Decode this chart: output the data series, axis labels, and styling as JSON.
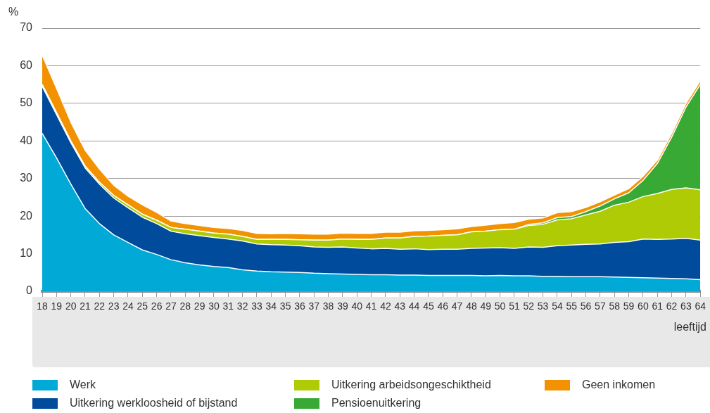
{
  "chart_data": {
    "type": "area",
    "stacked": true,
    "ylabel": "%",
    "xlabel": "leeftijd",
    "categories": [
      "18",
      "19",
      "20",
      "21",
      "22",
      "23",
      "24",
      "25",
      "26",
      "27",
      "28",
      "29",
      "30",
      "31",
      "32",
      "33",
      "34",
      "35",
      "36",
      "37",
      "38",
      "39",
      "40",
      "41",
      "42",
      "43",
      "44",
      "45",
      "46",
      "47",
      "48",
      "49",
      "50",
      "51",
      "52",
      "53",
      "54",
      "55",
      "56",
      "57",
      "58",
      "59",
      "60",
      "61",
      "62",
      "63",
      "64"
    ],
    "series": [
      {
        "name": "Werk",
        "color": "#00a9d6",
        "values": [
          42,
          35.5,
          28.5,
          22,
          18,
          15,
          13,
          11,
          9.8,
          8.4,
          7.6,
          7,
          6.6,
          6.3,
          5.7,
          5.4,
          5.2,
          5.1,
          5,
          4.8,
          4.7,
          4.6,
          4.5,
          4.4,
          4.4,
          4.3,
          4.3,
          4.2,
          4.2,
          4.2,
          4.2,
          4.1,
          4.2,
          4.1,
          4.1,
          4,
          4,
          3.9,
          3.9,
          3.9,
          3.8,
          3.7,
          3.6,
          3.5,
          3.4,
          3.3,
          3.1
        ]
      },
      {
        "name": "Uitkering werkloosheid of bijstand",
        "color": "#004b9b",
        "values": [
          12.5,
          11.5,
          11,
          10.8,
          10.5,
          9.8,
          9.2,
          8.7,
          8.2,
          7.6,
          7.7,
          7.8,
          7.7,
          7.6,
          7.7,
          7.2,
          7.2,
          7.2,
          7.1,
          7,
          7,
          7.2,
          7,
          6.9,
          7,
          6.9,
          7,
          6.9,
          7,
          7,
          7.2,
          7.4,
          7.4,
          7.3,
          7.7,
          7.7,
          8.1,
          8.4,
          8.6,
          8.7,
          9.2,
          9.5,
          10.3,
          10.3,
          10.5,
          10.8,
          10.5
        ]
      },
      {
        "name": "Uitkering arbeidsongeschiktheid",
        "color": "#afcb05",
        "values": [
          0.5,
          0.5,
          0.5,
          0.5,
          0.5,
          0.7,
          0.8,
          0.8,
          0.9,
          1,
          1.2,
          1.2,
          1.2,
          1.3,
          1.2,
          1.2,
          1.4,
          1.5,
          1.6,
          1.8,
          1.9,
          2.1,
          2.3,
          2.5,
          2.8,
          3,
          3.3,
          3.6,
          3.7,
          3.8,
          4.4,
          4.5,
          4.8,
          5.1,
          5.7,
          6.1,
          6.9,
          7,
          7.8,
          8.7,
          9.9,
          10.5,
          11.3,
          12.2,
          13.2,
          13.4,
          13.4
        ]
      },
      {
        "name": "Pensioenuitkering",
        "color": "#39a935",
        "values": [
          0,
          0,
          0,
          0,
          0,
          0,
          0,
          0,
          0,
          0,
          0,
          0,
          0,
          0,
          0,
          0,
          0,
          0,
          0,
          0,
          0,
          0,
          0,
          0,
          0,
          0,
          0,
          0,
          0,
          0,
          0,
          0,
          0,
          0,
          0.3,
          0.4,
          0.6,
          0.6,
          0.9,
          1.4,
          1.7,
          2.5,
          4.3,
          8,
          13.9,
          21.5,
          28
        ]
      },
      {
        "name": "Geen inkomen",
        "color": "#f39200",
        "values": [
          7.8,
          6.5,
          5,
          4.2,
          3.5,
          2.7,
          2.3,
          2.5,
          2.1,
          1.7,
          1.5,
          1.5,
          1.5,
          1.5,
          1.6,
          1.6,
          1.5,
          1.6,
          1.6,
          1.6,
          1.6,
          1.6,
          1.6,
          1.6,
          1.5,
          1.5,
          1.5,
          1.5,
          1.5,
          1.6,
          1.4,
          1.6,
          1.6,
          1.8,
          1.4,
          1.3,
          1.3,
          1.3,
          1.1,
          1.1,
          1,
          1.1,
          1.1,
          0.9,
          1,
          1,
          1
        ]
      }
    ],
    "ylim": [
      0,
      70
    ],
    "yticks": [
      0,
      10,
      20,
      30,
      40,
      50,
      60,
      70
    ],
    "grid": "y",
    "legend": "bottom"
  }
}
